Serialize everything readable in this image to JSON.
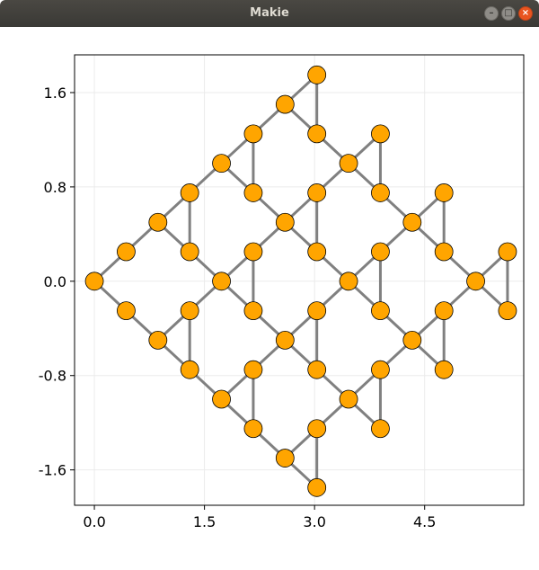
{
  "window": {
    "title": "Makie",
    "minimize_icon": "minimize-icon",
    "maximize_icon": "maximize-icon",
    "close_icon": "close-icon"
  },
  "chart_data": {
    "type": "graph",
    "title": "",
    "xlabel": "",
    "ylabel": "",
    "xlim": [
      -0.27,
      5.85
    ],
    "ylim": [
      -1.9,
      1.92
    ],
    "xticks": [
      {
        "value": 0.0,
        "label": "0.0"
      },
      {
        "value": 1.5,
        "label": "1.5"
      },
      {
        "value": 3.0,
        "label": "3.0"
      },
      {
        "value": 4.5,
        "label": "4.5"
      }
    ],
    "yticks": [
      {
        "value": 1.6,
        "label": "1.6"
      },
      {
        "value": 0.8,
        "label": "0.8"
      },
      {
        "value": 0.0,
        "label": "0.0"
      },
      {
        "value": -0.8,
        "label": "-0.8"
      },
      {
        "value": -1.6,
        "label": "-1.6"
      }
    ],
    "grid": true,
    "node_color": "#ffa500",
    "edge_color": "#808080",
    "nodes": [
      [
        0.0,
        0.0
      ],
      [
        0.433,
        0.25
      ],
      [
        0.433,
        -0.25
      ],
      [
        0.866,
        0.5
      ],
      [
        0.866,
        -0.5
      ],
      [
        1.299,
        0.75
      ],
      [
        1.299,
        0.25
      ],
      [
        1.299,
        -0.25
      ],
      [
        1.299,
        -0.75
      ],
      [
        1.732,
        1.0
      ],
      [
        1.732,
        0.0
      ],
      [
        1.732,
        -1.0
      ],
      [
        2.165,
        1.25
      ],
      [
        2.165,
        0.75
      ],
      [
        2.165,
        0.25
      ],
      [
        2.165,
        -0.25
      ],
      [
        2.165,
        -0.75
      ],
      [
        2.165,
        -1.25
      ],
      [
        2.598,
        1.5
      ],
      [
        2.598,
        0.5
      ],
      [
        2.598,
        -0.5
      ],
      [
        2.598,
        -1.5
      ],
      [
        3.031,
        1.75
      ],
      [
        3.031,
        1.25
      ],
      [
        3.031,
        0.75
      ],
      [
        3.031,
        0.25
      ],
      [
        3.031,
        -0.25
      ],
      [
        3.031,
        -0.75
      ],
      [
        3.031,
        -1.25
      ],
      [
        3.031,
        -1.75
      ],
      [
        3.464,
        1.0
      ],
      [
        3.464,
        0.0
      ],
      [
        3.464,
        -1.0
      ],
      [
        3.897,
        1.25
      ],
      [
        3.897,
        0.75
      ],
      [
        3.897,
        0.25
      ],
      [
        3.897,
        -0.25
      ],
      [
        3.897,
        -0.75
      ],
      [
        3.897,
        -1.25
      ],
      [
        4.33,
        0.5
      ],
      [
        4.33,
        -0.5
      ],
      [
        4.763,
        0.75
      ],
      [
        4.763,
        0.25
      ],
      [
        4.763,
        -0.25
      ],
      [
        4.763,
        -0.75
      ],
      [
        5.196,
        0.0
      ],
      [
        5.629,
        0.25
      ],
      [
        5.629,
        -0.25
      ]
    ],
    "edges": [
      [
        0,
        1
      ],
      [
        0,
        2
      ],
      [
        1,
        3
      ],
      [
        2,
        4
      ],
      [
        3,
        5
      ],
      [
        3,
        6
      ],
      [
        4,
        7
      ],
      [
        4,
        8
      ],
      [
        5,
        6
      ],
      [
        7,
        8
      ],
      [
        5,
        9
      ],
      [
        6,
        10
      ],
      [
        7,
        10
      ],
      [
        8,
        11
      ],
      [
        9,
        12
      ],
      [
        9,
        13
      ],
      [
        10,
        14
      ],
      [
        10,
        15
      ],
      [
        11,
        16
      ],
      [
        11,
        17
      ],
      [
        12,
        13
      ],
      [
        14,
        15
      ],
      [
        16,
        17
      ],
      [
        12,
        18
      ],
      [
        13,
        19
      ],
      [
        14,
        19
      ],
      [
        15,
        20
      ],
      [
        16,
        20
      ],
      [
        17,
        21
      ],
      [
        18,
        22
      ],
      [
        18,
        23
      ],
      [
        19,
        24
      ],
      [
        19,
        25
      ],
      [
        20,
        26
      ],
      [
        20,
        27
      ],
      [
        21,
        28
      ],
      [
        21,
        29
      ],
      [
        22,
        23
      ],
      [
        24,
        25
      ],
      [
        26,
        27
      ],
      [
        28,
        29
      ],
      [
        23,
        30
      ],
      [
        24,
        30
      ],
      [
        25,
        31
      ],
      [
        26,
        31
      ],
      [
        27,
        32
      ],
      [
        28,
        32
      ],
      [
        30,
        33
      ],
      [
        30,
        34
      ],
      [
        31,
        35
      ],
      [
        31,
        36
      ],
      [
        32,
        37
      ],
      [
        32,
        38
      ],
      [
        33,
        34
      ],
      [
        35,
        36
      ],
      [
        37,
        38
      ],
      [
        34,
        39
      ],
      [
        35,
        39
      ],
      [
        36,
        40
      ],
      [
        37,
        40
      ],
      [
        39,
        41
      ],
      [
        39,
        42
      ],
      [
        40,
        43
      ],
      [
        40,
        44
      ],
      [
        41,
        42
      ],
      [
        43,
        44
      ],
      [
        42,
        45
      ],
      [
        43,
        45
      ],
      [
        45,
        46
      ],
      [
        45,
        47
      ],
      [
        46,
        47
      ]
    ]
  }
}
